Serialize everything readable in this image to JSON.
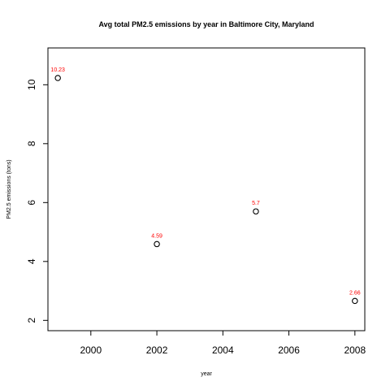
{
  "chart_data": {
    "type": "scatter",
    "title": "Avg total PM2.5 emissions by year in Baltimore City, Maryland",
    "xlabel": "year",
    "ylabel": "PM2.5 emissions (tons)",
    "xlim": [
      1998.7,
      2008.3
    ],
    "ylim": [
      1.65,
      11.25
    ],
    "x_ticks": [
      2000,
      2002,
      2004,
      2006,
      2008
    ],
    "y_ticks": [
      2,
      4,
      6,
      8,
      10
    ],
    "grid": false,
    "legend": "none",
    "point_color": "#000000",
    "label_color": "#ff0000",
    "points": [
      {
        "x": 1999,
        "y": 10.23,
        "label": "10.23"
      },
      {
        "x": 2002,
        "y": 4.59,
        "label": "4.59"
      },
      {
        "x": 2005,
        "y": 5.7,
        "label": "5.7"
      },
      {
        "x": 2008,
        "y": 2.66,
        "label": "2.66"
      }
    ]
  }
}
